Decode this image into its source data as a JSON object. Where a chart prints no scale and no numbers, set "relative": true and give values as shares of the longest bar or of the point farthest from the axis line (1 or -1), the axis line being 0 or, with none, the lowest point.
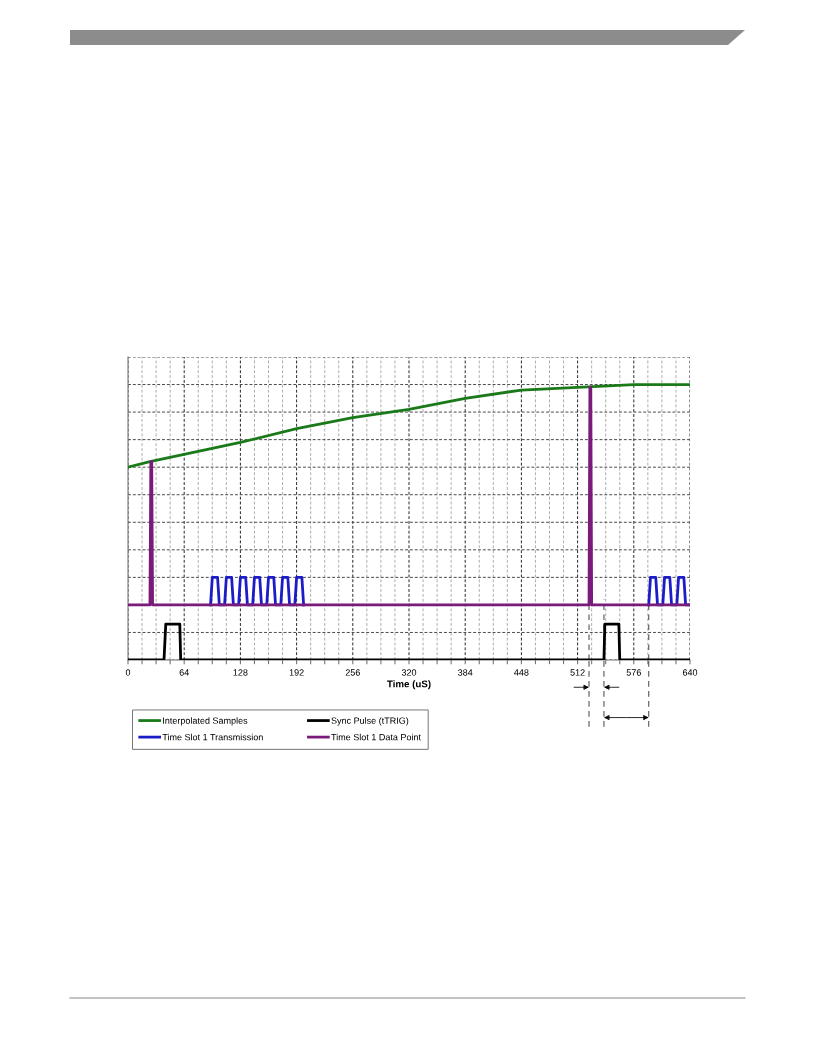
{
  "chart_data": {
    "type": "line",
    "relative": true,
    "xlabel": "Time (uS)",
    "xlim": [
      0,
      640
    ],
    "xticks": [
      0,
      {
        "value": 16,
        "label": null
      },
      {
        "value": 32,
        "label": null
      },
      {
        "value": 48,
        "label": null
      },
      64,
      {
        "value": 80,
        "label": null
      },
      {
        "value": 96,
        "label": null
      },
      {
        "value": 112,
        "label": null
      },
      128,
      {
        "value": 144,
        "label": null
      },
      {
        "value": 160,
        "label": null
      },
      {
        "value": 176,
        "label": null
      },
      192,
      {
        "value": 208,
        "label": null
      },
      {
        "value": 224,
        "label": null
      },
      {
        "value": 240,
        "label": null
      },
      256,
      {
        "value": 272,
        "label": null
      },
      {
        "value": 288,
        "label": null
      },
      {
        "value": 304,
        "label": null
      },
      320,
      {
        "value": 336,
        "label": null
      },
      {
        "value": 352,
        "label": null
      },
      {
        "value": 368,
        "label": null
      },
      384,
      {
        "value": 400,
        "label": null
      },
      {
        "value": 416,
        "label": null
      },
      {
        "value": 432,
        "label": null
      },
      448,
      {
        "value": 464,
        "label": null
      },
      {
        "value": 480,
        "label": null
      },
      {
        "value": 496,
        "label": null
      },
      512,
      {
        "value": 528,
        "label": null
      },
      {
        "value": 544,
        "label": null
      },
      {
        "value": 560,
        "label": null
      },
      576,
      {
        "value": 592,
        "label": null
      },
      {
        "value": 608,
        "label": null
      },
      {
        "value": 624,
        "label": null
      },
      640
    ],
    "tick_labels": "x",
    "grid": true,
    "legend": "bottom left",
    "marker": "none",
    "line_style": "solid",
    "series": [
      {
        "name": "Interpolated Samples",
        "color": "#1a7a1a",
        "x": [
          0,
          25,
          128,
          192,
          256,
          320,
          384,
          448,
          512,
          576,
          640
        ],
        "values": [
          0.7,
          0.72,
          0.79,
          0.84,
          0.88,
          0.91,
          0.95,
          0.98,
          0.99,
          1.0,
          1.0
        ]
      },
      {
        "name": "Time Slot 1 Transmission",
        "color": "#1c1cc8",
        "x": [
          94,
          96,
          102,
          104,
          110,
          112,
          118,
          120,
          126,
          128,
          134,
          136,
          142,
          144,
          150,
          152,
          158,
          160,
          166,
          168,
          174,
          176,
          182,
          184,
          190,
          192,
          198,
          200,
          400,
          593,
          595,
          601,
          603,
          609,
          611,
          617,
          619,
          625,
          627,
          633,
          635,
          640
        ],
        "values": [
          0.2,
          0.3,
          0.3,
          0.2,
          0.2,
          0.3,
          0.3,
          0.2,
          0.2,
          0.3,
          0.3,
          0.2,
          0.2,
          0.3,
          0.3,
          0.2,
          0.2,
          0.3,
          0.3,
          0.2,
          0.2,
          0.3,
          0.3,
          0.2,
          0.2,
          0.3,
          0.3,
          0.2,
          null,
          0.2,
          0.3,
          0.3,
          0.2,
          0.2,
          0.3,
          0.3,
          0.2,
          0.2,
          0.3,
          0.3,
          0.2,
          0.2
        ]
      },
      {
        "name": "Sync Pulse (tTRIG)",
        "color": "#000000",
        "x": [
          0,
          41,
          43,
          59,
          60,
          542,
          543,
          559,
          560,
          640
        ],
        "values": [
          0,
          0,
          0.13,
          0.13,
          0,
          0,
          0.13,
          0.13,
          0,
          0
        ]
      },
      {
        "name": "Time Slot 1 Data Point",
        "color": "#7a1a7a",
        "x": [
          0,
          25,
          26,
          27,
          28,
          525,
          526,
          527,
          528,
          640
        ],
        "values": [
          0.2,
          0.2,
          0.72,
          0.72,
          0.2,
          0.2,
          0.99,
          0.99,
          0.2,
          0.2
        ]
      }
    ],
    "ref_lines": [
      {
        "axis": "x",
        "value": 525,
        "color": "#555555",
        "line_style": "dashed"
      },
      {
        "axis": "x",
        "value": 542,
        "color": "#555555",
        "line_style": "dashed"
      },
      {
        "axis": "x",
        "value": 593,
        "color": "#555555",
        "line_style": "dashed"
      }
    ]
  }
}
